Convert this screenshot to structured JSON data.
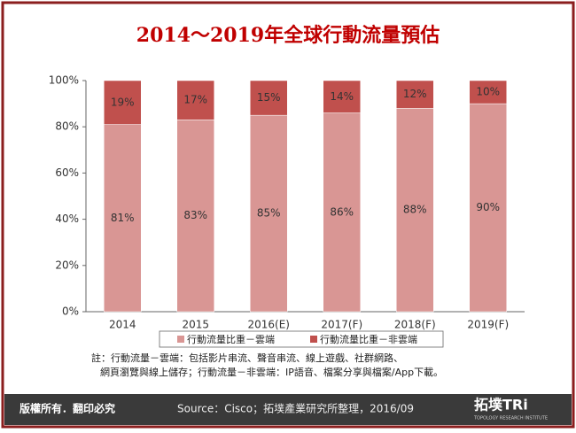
{
  "chart_data": {
    "type": "bar",
    "stacked": true,
    "title": "2014～2019年全球行動流量預估",
    "categories": [
      "2014",
      "2015",
      "2016(E)",
      "2017(F)",
      "2018(F)",
      "2019(F)"
    ],
    "series": [
      {
        "name": "行動流量比重－雲端",
        "color": "#d99694",
        "values": [
          81,
          83,
          85,
          86,
          88,
          90
        ],
        "value_labels": [
          "81%",
          "83%",
          "85%",
          "86%",
          "88%",
          "90%"
        ]
      },
      {
        "name": "行動流量比重－非雲端",
        "color": "#c0504d",
        "values": [
          19,
          17,
          15,
          14,
          12,
          10
        ],
        "value_labels": [
          "19%",
          "17%",
          "15%",
          "14%",
          "12%",
          "10%"
        ]
      }
    ],
    "ylim": [
      0,
      100
    ],
    "yticks": [
      {
        "value": 0,
        "label": "0%"
      },
      {
        "value": 20,
        "label": "20%"
      },
      {
        "value": 40,
        "label": "40%"
      },
      {
        "value": 60,
        "label": "60%"
      },
      {
        "value": 80,
        "label": "80%"
      },
      {
        "value": 100,
        "label": "100%"
      }
    ],
    "note": [
      "註：行動流量－雲端：包括影片串流、聲音串流、線上遊戲、社群網路、",
      "網頁瀏覽與線上儲存；行動流量－非雲端：IP語音、檔案分享與檔案/App下載。"
    ]
  },
  "footer": {
    "copyright": "版權所有．翻印必究",
    "source": "Source：Cisco；拓墣產業研究所整理，2016/09",
    "logo": "拓墣TRi",
    "logo_sub": "TOPOLOGY RESEARCH INSTITUTE"
  }
}
